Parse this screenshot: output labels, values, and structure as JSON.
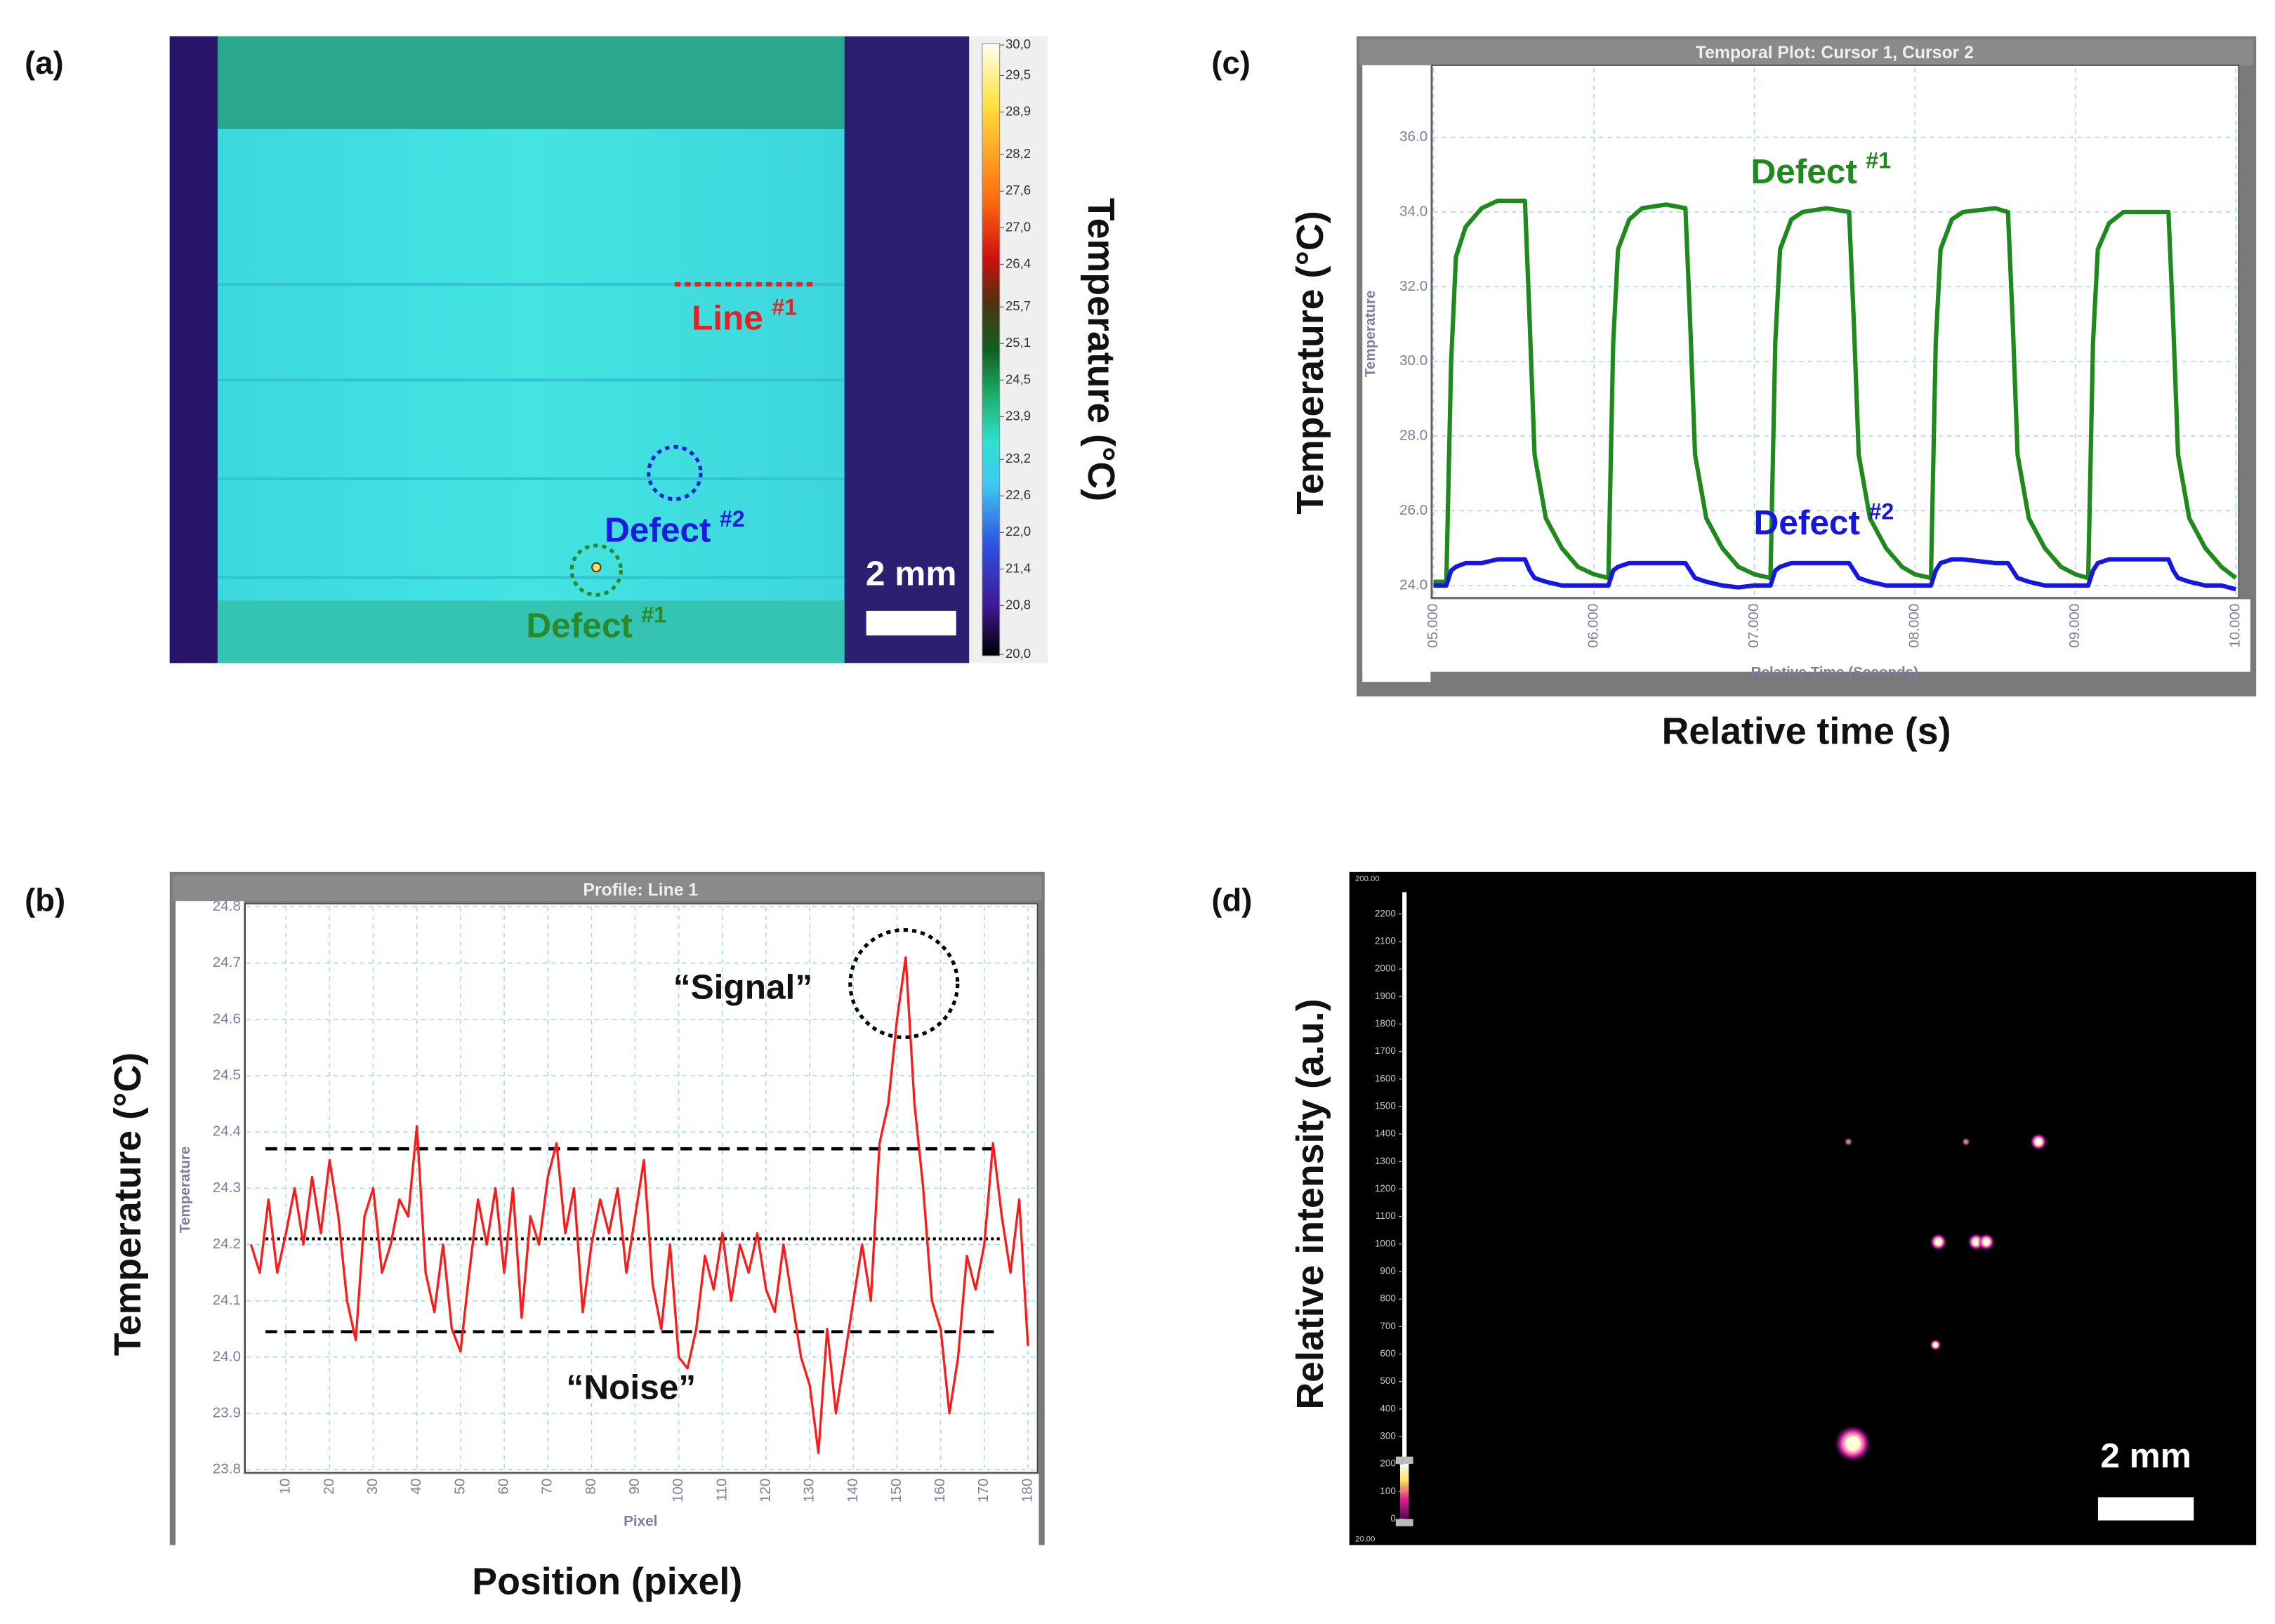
{
  "chart_data": [
    {
      "type": "image",
      "label": "(a)",
      "colorbar_label": "Temperature (°C)",
      "colorbar_lim": [
        20,
        30
      ],
      "colorbar_ticks": [
        {
          "value": 30,
          "label": "30,0"
        },
        {
          "value": 29.5,
          "label": "29,5"
        },
        {
          "value": 28.9,
          "label": "28,9"
        },
        {
          "value": 28.2,
          "label": "28,2"
        },
        {
          "value": 27.6,
          "label": "27,6"
        },
        {
          "value": 27,
          "label": "27,0"
        },
        {
          "value": 26.4,
          "label": "26,4"
        },
        {
          "value": 25.7,
          "label": "25,7"
        },
        {
          "value": 25.1,
          "label": "25,1"
        },
        {
          "value": 24.5,
          "label": "24,5"
        },
        {
          "value": 23.9,
          "label": "23,9"
        },
        {
          "value": 23.2,
          "label": "23,2"
        },
        {
          "value": 22.6,
          "label": "22,6"
        },
        {
          "value": 22,
          "label": "22,0"
        },
        {
          "value": 21.4,
          "label": "21,4"
        },
        {
          "value": 20.8,
          "label": "20,8"
        },
        {
          "value": 20,
          "label": "20,0"
        }
      ],
      "annotations": [
        {
          "text": "Line",
          "sup": "#1",
          "color": "#e02424"
        },
        {
          "text": "Defect",
          "sup": "#2",
          "color": "#1a1ae0"
        },
        {
          "text": "Defect",
          "sup": "#1",
          "color": "#2a8a2a"
        }
      ],
      "scale_bar": "2 mm"
    },
    {
      "type": "line",
      "label": "(b)",
      "title": "Profile: Line 1",
      "xlabel": "Pixel",
      "ylabel": "Temperature",
      "outer_xlabel": "Position (pixel)",
      "outer_ylabel": "Temperature (°C)",
      "xlim": [
        1,
        181.5
      ],
      "ylim": [
        23.8,
        24.8
      ],
      "xticks": [
        10,
        20,
        30,
        40,
        50,
        60,
        70,
        80,
        90,
        100,
        110,
        120,
        130,
        140,
        150,
        160,
        170,
        180
      ],
      "yticks": [
        23.8,
        23.9,
        {
          "value": 24,
          "label": "24.0"
        },
        24.1,
        24.2,
        24.3,
        24.4,
        24.5,
        24.6,
        24.7,
        24.8
      ],
      "grid": true,
      "x": [
        2,
        4,
        6,
        8,
        10,
        12,
        14,
        16,
        18,
        20,
        22,
        24,
        26,
        28,
        30,
        32,
        34,
        36,
        38,
        40,
        42,
        44,
        46,
        48,
        50,
        52,
        54,
        56,
        58,
        60,
        62,
        64,
        66,
        68,
        70,
        72,
        74,
        76,
        78,
        80,
        82,
        84,
        86,
        88,
        90,
        92,
        94,
        96,
        98,
        100,
        102,
        104,
        106,
        108,
        110,
        112,
        114,
        116,
        118,
        120,
        122,
        124,
        126,
        128,
        130,
        132,
        134,
        136,
        138,
        140,
        142,
        144,
        146,
        148,
        150,
        152,
        154,
        156,
        158,
        160,
        162,
        164,
        166,
        168,
        170,
        172,
        174,
        176,
        178,
        180
      ],
      "series": [
        {
          "color": "#ff1a1a",
          "values": [
            24.2,
            24.15,
            24.28,
            24.15,
            24.22,
            24.3,
            24.2,
            24.32,
            24.22,
            24.35,
            24.25,
            24.1,
            24.03,
            24.25,
            24.3,
            24.15,
            24.2,
            24.28,
            24.25,
            24.41,
            24.15,
            24.08,
            24.2,
            24.05,
            24.01,
            24.15,
            24.28,
            24.2,
            24.3,
            24.15,
            24.3,
            24.07,
            24.25,
            24.2,
            24.32,
            24.38,
            24.22,
            24.3,
            24.08,
            24.2,
            24.28,
            24.22,
            24.3,
            24.15,
            24.25,
            24.35,
            24.13,
            24.05,
            24.2,
            24.0,
            23.98,
            24.05,
            24.18,
            24.12,
            24.22,
            24.1,
            24.2,
            24.15,
            24.22,
            24.12,
            24.08,
            24.2,
            24.1,
            24.0,
            23.95,
            23.83,
            24.05,
            23.9,
            24.0,
            24.1,
            24.2,
            24.1,
            24.38,
            24.45,
            24.6,
            24.71,
            24.45,
            24.3,
            24.1,
            24.05,
            23.9,
            24.0,
            24.18,
            24.12,
            24.2,
            24.38,
            24.25,
            24.15,
            24.28,
            24.02
          ]
        }
      ],
      "reference_lines": [
        {
          "value": 24.37,
          "style": "dashed"
        },
        {
          "value": 24.21,
          "style": "dotted"
        },
        {
          "value": 24.045,
          "style": "dashed"
        }
      ],
      "annotations": [
        "“Signal”",
        "“Noise”"
      ]
    },
    {
      "type": "line",
      "label": "(c)",
      "title": "Temporal Plot: Cursor 1, Cursor 2",
      "xlabel": "Relative Time (Seconds)",
      "ylabel": "Temperature",
      "outer_xlabel": "Relative time (s)",
      "outer_ylabel": "Temperature (°C)",
      "xlim": [
        5,
        10
      ],
      "ylim": [
        23.75,
        37.85
      ],
      "xticks": [
        {
          "value": 5,
          "label": "05.000"
        },
        {
          "value": 6,
          "label": "06.000"
        },
        {
          "value": 7,
          "label": "07.000"
        },
        {
          "value": 8,
          "label": "08.000"
        },
        {
          "value": 9,
          "label": "09.000"
        },
        {
          "value": 10,
          "label": "10.000"
        }
      ],
      "yticks": [
        {
          "value": 24,
          "label": "24.0"
        },
        {
          "value": 26,
          "label": "26.0"
        },
        {
          "value": 28,
          "label": "28.0"
        },
        {
          "value": 30,
          "label": "30.0"
        },
        {
          "value": 32,
          "label": "32.0"
        },
        {
          "value": 34,
          "label": "34.0"
        },
        {
          "value": 36,
          "label": "36.0"
        }
      ],
      "grid": true,
      "x": [
        5.0,
        5.08,
        5.11,
        5.14,
        5.2,
        5.3,
        5.4,
        5.57,
        5.6,
        5.63,
        5.7,
        5.8,
        5.9,
        6.0,
        6.09,
        6.12,
        6.15,
        6.22,
        6.3,
        6.45,
        6.57,
        6.6,
        6.63,
        6.7,
        6.8,
        6.9,
        7.0,
        7.1,
        7.13,
        7.16,
        7.23,
        7.3,
        7.45,
        7.59,
        7.62,
        7.65,
        7.72,
        7.82,
        7.92,
        8.0,
        8.1,
        8.13,
        8.16,
        8.23,
        8.3,
        8.5,
        8.58,
        8.61,
        8.64,
        8.71,
        8.81,
        8.91,
        9.0,
        9.08,
        9.11,
        9.14,
        9.21,
        9.3,
        9.5,
        9.58,
        9.61,
        9.64,
        9.71,
        9.81,
        9.91,
        10.0
      ],
      "series": [
        {
          "color": "#1e8a1e",
          "values": [
            24.1,
            24.1,
            30.0,
            32.8,
            33.6,
            34.1,
            34.3,
            34.3,
            31.0,
            27.5,
            25.8,
            25.0,
            24.5,
            24.3,
            24.2,
            30.5,
            33.0,
            33.8,
            34.1,
            34.2,
            34.1,
            31.0,
            27.5,
            25.8,
            25.0,
            24.5,
            24.3,
            24.2,
            30.5,
            33.0,
            33.8,
            34.0,
            34.1,
            34.0,
            31.0,
            27.5,
            25.8,
            25.0,
            24.5,
            24.3,
            24.2,
            30.5,
            33.0,
            33.8,
            34.0,
            34.1,
            34.0,
            31.0,
            27.5,
            25.8,
            25.0,
            24.5,
            24.3,
            24.2,
            30.5,
            33.0,
            33.7,
            34.0,
            34.0,
            34.0,
            31.0,
            27.5,
            25.8,
            25.0,
            24.5,
            24.2
          ]
        },
        {
          "color": "#1515e6",
          "values": [
            24.0,
            24.0,
            24.4,
            24.5,
            24.6,
            24.6,
            24.7,
            24.7,
            24.4,
            24.2,
            24.1,
            24.0,
            24.0,
            24.0,
            24.0,
            24.4,
            24.5,
            24.6,
            24.6,
            24.6,
            24.6,
            24.4,
            24.2,
            24.1,
            24.0,
            23.95,
            24.0,
            24.0,
            24.4,
            24.5,
            24.6,
            24.6,
            24.6,
            24.6,
            24.4,
            24.2,
            24.1,
            24.0,
            24.0,
            24.0,
            24.0,
            24.4,
            24.6,
            24.7,
            24.7,
            24.6,
            24.6,
            24.4,
            24.2,
            24.1,
            24.0,
            24.0,
            24.0,
            24.0,
            24.4,
            24.6,
            24.7,
            24.7,
            24.7,
            24.7,
            24.4,
            24.2,
            24.1,
            24.0,
            24.0,
            23.9
          ]
        }
      ],
      "annotations": [
        {
          "text": "Defect",
          "sup": "#1",
          "color": "#1e8a1e"
        },
        {
          "text": "Defect",
          "sup": "#2",
          "color": "#1515e6"
        }
      ]
    },
    {
      "type": "image",
      "label": "(d)",
      "colorbar_label": "Relative intensity (a.u.)",
      "colorbar_lim": [
        0,
        2200
      ],
      "colorbar_ticks": [
        0,
        100,
        200,
        300,
        400,
        500,
        600,
        700,
        800,
        900,
        1000,
        1100,
        1200,
        1300,
        1400,
        1500,
        1600,
        1700,
        1800,
        1900,
        2000,
        2100,
        2200
      ],
      "colorbar_range_labels": [
        "200.00",
        "20.00"
      ],
      "scale_bar": "2 mm"
    }
  ]
}
